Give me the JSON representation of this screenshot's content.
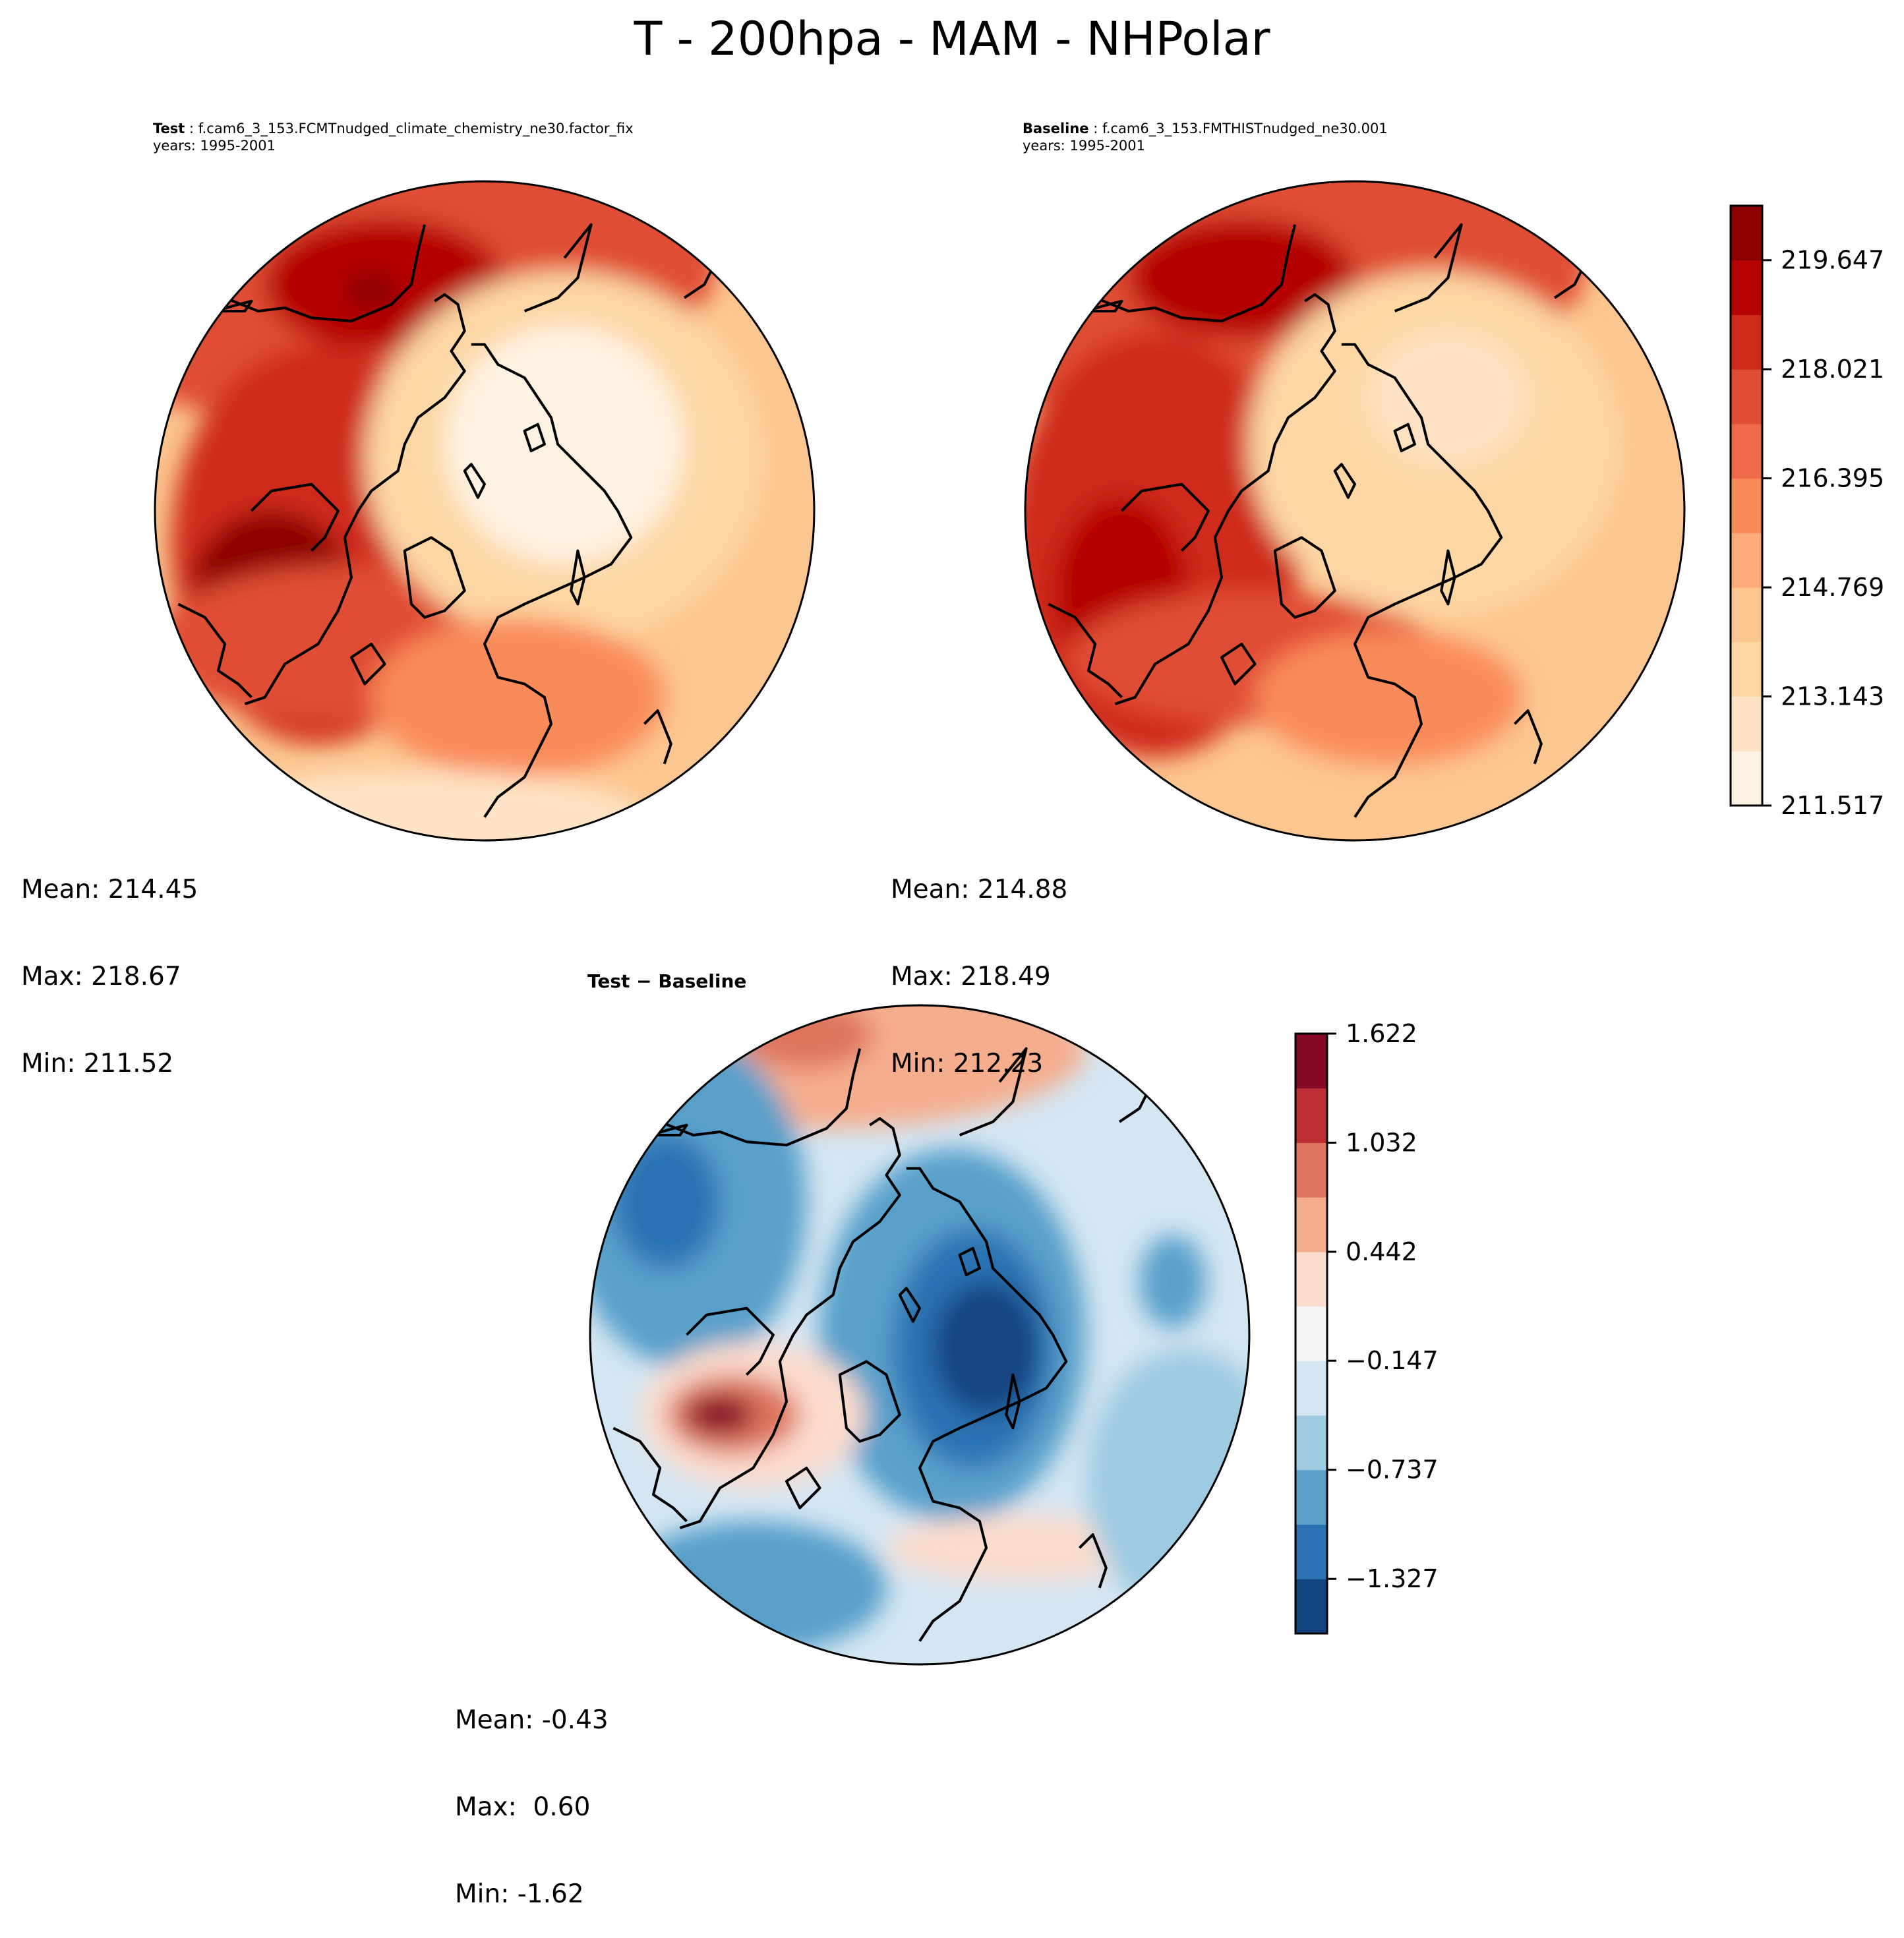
{
  "suptitle": "T - 200hpa - MAM - NHPolar",
  "panels": {
    "test": {
      "label": "Test",
      "case": " : f.cam6_3_153.FCMTnudged_climate_chemistry_ne30.factor_fix",
      "years": "years: 1995-2001",
      "stats": {
        "mean": "Mean: 214.45",
        "max": "Max: 218.67",
        "min": "Min: 211.52"
      }
    },
    "baseline": {
      "label": "Baseline",
      "case": " : f.cam6_3_153.FMTHISTnudged_ne30.001",
      "years": "years: 1995-2001",
      "stats": {
        "mean": "Mean: 214.88",
        "max": "Max: 218.49",
        "min": "Min: 212.23"
      }
    },
    "diff": {
      "title": "Test − Baseline",
      "stats": {
        "mean": "Mean: -0.43",
        "max": "Max:  0.60",
        "min": "Min: -1.62"
      }
    }
  },
  "chart_data": [
    {
      "type": "heatmap",
      "title": "Test : f.cam6_3_153.FCMTnudged_climate_chemistry_ne30.factor_fix",
      "subtitle": "years: 1995-2001",
      "projection": "North Polar Stereographic",
      "variable": "T",
      "level": "200hpa",
      "season": "MAM",
      "mean": 214.45,
      "max": 218.67,
      "min": 211.52,
      "background_value": 214.0,
      "blobs": [
        {
          "cx": 0.3,
          "cy": 0.12,
          "rx": 0.55,
          "ry": 0.25,
          "value": 217.8
        },
        {
          "cx": 0.35,
          "cy": 0.16,
          "rx": 0.18,
          "ry": 0.1,
          "value": 219.4
        },
        {
          "cx": 0.33,
          "cy": 0.17,
          "rx": 0.04,
          "ry": 0.03,
          "value": 219.9
        },
        {
          "cx": 0.25,
          "cy": 0.55,
          "rx": 0.22,
          "ry": 0.3,
          "value": 218.6
        },
        {
          "cx": 0.18,
          "cy": 0.62,
          "rx": 0.12,
          "ry": 0.12,
          "value": 219.9
        },
        {
          "cx": 0.3,
          "cy": 0.7,
          "rx": 0.3,
          "ry": 0.12,
          "value": 217.7
        },
        {
          "cx": 0.62,
          "cy": 0.42,
          "rx": 0.3,
          "ry": 0.28,
          "value": 213.3
        },
        {
          "cx": 0.62,
          "cy": 0.4,
          "rx": 0.18,
          "ry": 0.18,
          "value": 212.0
        },
        {
          "cx": 0.55,
          "cy": 0.78,
          "rx": 0.22,
          "ry": 0.12,
          "value": 216.2
        },
        {
          "cx": 0.4,
          "cy": 0.97,
          "rx": 0.35,
          "ry": 0.08,
          "value": 212.8
        }
      ]
    },
    {
      "type": "heatmap",
      "title": "Baseline : f.cam6_3_153.FMTHISTnudged_ne30.001",
      "subtitle": "years: 1995-2001",
      "projection": "North Polar Stereographic",
      "variable": "T",
      "level": "200hpa",
      "season": "MAM",
      "mean": 214.88,
      "max": 218.49,
      "min": 212.23,
      "background_value": 214.3,
      "blobs": [
        {
          "cx": 0.3,
          "cy": 0.12,
          "rx": 0.55,
          "ry": 0.25,
          "value": 217.5
        },
        {
          "cx": 0.33,
          "cy": 0.15,
          "rx": 0.17,
          "ry": 0.09,
          "value": 219.2
        },
        {
          "cx": 0.2,
          "cy": 0.55,
          "rx": 0.22,
          "ry": 0.32,
          "value": 218.5
        },
        {
          "cx": 0.15,
          "cy": 0.62,
          "rx": 0.1,
          "ry": 0.14,
          "value": 219.3
        },
        {
          "cx": 0.35,
          "cy": 0.72,
          "rx": 0.28,
          "ry": 0.1,
          "value": 217.6
        },
        {
          "cx": 0.62,
          "cy": 0.4,
          "rx": 0.28,
          "ry": 0.26,
          "value": 213.4
        },
        {
          "cx": 0.64,
          "cy": 0.33,
          "rx": 0.12,
          "ry": 0.1,
          "value": 212.4
        },
        {
          "cx": 0.55,
          "cy": 0.78,
          "rx": 0.2,
          "ry": 0.1,
          "value": 215.8
        }
      ]
    },
    {
      "type": "heatmap",
      "title": "Test − Baseline",
      "projection": "North Polar Stereographic",
      "mean": -0.43,
      "max": 0.6,
      "min": -1.62,
      "background_value": -0.35,
      "blobs": [
        {
          "cx": 0.35,
          "cy": 0.07,
          "rx": 0.4,
          "ry": 0.12,
          "value": 0.5
        },
        {
          "cx": 0.33,
          "cy": 0.05,
          "rx": 0.1,
          "ry": 0.05,
          "value": 0.9
        },
        {
          "cx": 0.15,
          "cy": 0.3,
          "rx": 0.18,
          "ry": 0.25,
          "value": -0.9
        },
        {
          "cx": 0.12,
          "cy": 0.3,
          "rx": 0.08,
          "ry": 0.1,
          "value": -1.2
        },
        {
          "cx": 0.55,
          "cy": 0.5,
          "rx": 0.2,
          "ry": 0.28,
          "value": -0.9
        },
        {
          "cx": 0.58,
          "cy": 0.52,
          "rx": 0.12,
          "ry": 0.18,
          "value": -1.3
        },
        {
          "cx": 0.6,
          "cy": 0.52,
          "rx": 0.08,
          "ry": 0.1,
          "value": -1.5
        },
        {
          "cx": 0.25,
          "cy": 0.62,
          "rx": 0.17,
          "ry": 0.11,
          "value": 0.3
        },
        {
          "cx": 0.22,
          "cy": 0.62,
          "rx": 0.1,
          "ry": 0.06,
          "value": 0.9
        },
        {
          "cx": 0.2,
          "cy": 0.62,
          "rx": 0.05,
          "ry": 0.03,
          "value": 1.4
        },
        {
          "cx": 0.25,
          "cy": 0.88,
          "rx": 0.2,
          "ry": 0.1,
          "value": -1.0
        },
        {
          "cx": 0.65,
          "cy": 0.82,
          "rx": 0.2,
          "ry": 0.05,
          "value": 0.25
        },
        {
          "cx": 0.88,
          "cy": 0.42,
          "rx": 0.05,
          "ry": 0.07,
          "value": -0.9
        },
        {
          "cx": 0.9,
          "cy": 0.72,
          "rx": 0.15,
          "ry": 0.2,
          "value": -0.6
        }
      ]
    }
  ],
  "colorbars": {
    "absolute": {
      "colormap": "OrRd",
      "levels_min": 211.517,
      "levels_max": 220.46,
      "ticks": [
        "219.647",
        "218.021",
        "216.395",
        "214.769",
        "213.143",
        "211.517"
      ],
      "tick_values": [
        219.647,
        218.021,
        216.395,
        214.769,
        213.143,
        211.517
      ],
      "colors": [
        "#fff2e2",
        "#fee4c4",
        "#fdd7a4",
        "#fcc690",
        "#fbac7a",
        "#f98b5a",
        "#ee6a4b",
        "#e04d36",
        "#cf291c",
        "#b50203",
        "#8c0000"
      ]
    },
    "difference": {
      "colormap": "RdBu_r",
      "levels_min": -1.622,
      "levels_max": 1.622,
      "ticks": [
        "1.622",
        "1.032",
        "0.442",
        "−0.147",
        "−0.737",
        "−1.327"
      ],
      "tick_values": [
        1.622,
        1.032,
        0.442,
        -0.147,
        -0.737,
        -1.327
      ],
      "colors": [
        "#134581",
        "#2b72b2",
        "#58a0ca",
        "#9fcbe2",
        "#d4e6f2",
        "#f5f5f5",
        "#fcdccd",
        "#f5ad8d",
        "#dd745d",
        "#be2e35",
        "#860a25"
      ]
    }
  }
}
